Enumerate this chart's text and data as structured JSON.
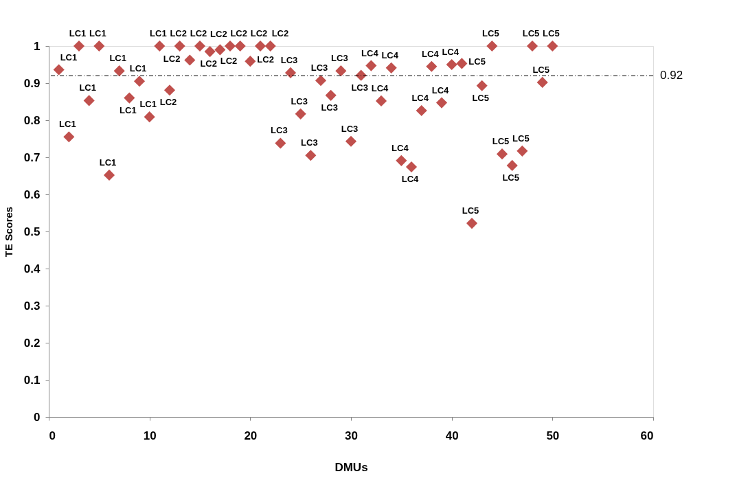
{
  "chart_data": {
    "type": "scatter",
    "xlabel": "DMUs",
    "ylabel": "TE Scores",
    "x": [
      1,
      2,
      3,
      4,
      5,
      6,
      7,
      8,
      9,
      10,
      11,
      12,
      13,
      14,
      15,
      16,
      17,
      18,
      19,
      20,
      21,
      22,
      23,
      24,
      25,
      26,
      27,
      28,
      29,
      30,
      31,
      32,
      33,
      34,
      35,
      36,
      37,
      38,
      39,
      40,
      41,
      42,
      43,
      44,
      45,
      46,
      47,
      48,
      49,
      50
    ],
    "series": [
      {
        "color": "#c0504d",
        "values": [
          0.936,
          0.755,
          1.0,
          0.853,
          1.0,
          0.652,
          0.933,
          0.86,
          0.905,
          0.809,
          1.0,
          0.881,
          1.0,
          0.962,
          1.0,
          0.985,
          0.99,
          1.0,
          1.0,
          0.959,
          1.0,
          1.0,
          0.738,
          0.928,
          0.817,
          0.705,
          0.907,
          0.867,
          0.933,
          0.743,
          0.921,
          0.947,
          0.852,
          0.941,
          0.691,
          0.674,
          0.826,
          0.945,
          0.847,
          0.95,
          0.953,
          0.522,
          0.893,
          1.0,
          0.709,
          0.678,
          0.717,
          1.0,
          0.902,
          1.0
        ],
        "value_labels": [
          "LC1",
          "LC1",
          "LC1",
          "LC1",
          "LC1",
          "LC1",
          "LC1",
          "LC1",
          "LC1",
          "LC1",
          "LC1",
          "LC2",
          "LC2",
          "LC2",
          "LC2",
          "LC2",
          "LC2",
          "LC2",
          "LC2",
          "LC2",
          "LC2",
          "LC2",
          "LC3",
          "LC3",
          "LC3",
          "LC3",
          "LC3",
          "LC3",
          "LC3",
          "LC3",
          "LC3",
          "LC4",
          "LC4",
          "LC4",
          "LC4",
          "LC4",
          "LC4",
          "LC4",
          "LC4",
          "LC4",
          "LC5",
          "LC5",
          "LC5",
          "LC5",
          "LC5",
          "LC5",
          "LC5",
          "LC5",
          "LC5",
          "LC5"
        ]
      }
    ],
    "xlim": [
      0,
      60
    ],
    "xticks": [
      0,
      10,
      20,
      30,
      40,
      50,
      60
    ],
    "ylim": [
      0,
      1
    ],
    "yticks": [
      0,
      0.1,
      0.2,
      0.3,
      0.4,
      0.5,
      0.6,
      0.7,
      0.8,
      0.9,
      1
    ],
    "ref_lines": [
      {
        "axis": "y",
        "value": 0.92,
        "label": "0.92",
        "color": "#000000",
        "line_style": "dashdot"
      }
    ],
    "marker": "diamond",
    "grid": false,
    "legend": false
  }
}
